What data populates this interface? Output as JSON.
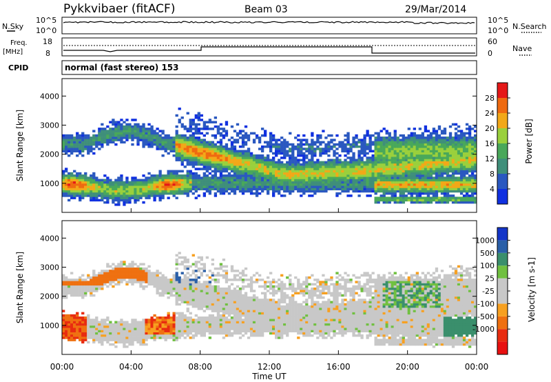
{
  "header": {
    "title": "Pykkvibaer (fitACF)",
    "beam": "Beam 03",
    "date": "29/Mar/2014"
  },
  "panels": {
    "nsky": {
      "label": "N.Sky",
      "left_ticks": [
        "10^5",
        "10^0"
      ],
      "right_ticks": [
        "10^5",
        "10^0"
      ],
      "right_label": "N.Search"
    },
    "freq": {
      "label_line1": "Freq.",
      "label_line2": "[MHz]",
      "left_ticks": [
        "18",
        "8"
      ],
      "right_ticks": [
        "60",
        "0"
      ],
      "right_label": "Nave"
    },
    "cpid": {
      "label": "CPID",
      "text": "normal (fast stereo) 153"
    }
  },
  "colors": {
    "power_scale": [
      "#1030e0",
      "#2a58c0",
      "#3f8f7a",
      "#49a85a",
      "#9ad03c",
      "#f2a818",
      "#ef6a10",
      "#e51818"
    ],
    "velocity_scale": [
      "#1435c8",
      "#2a5fa8",
      "#3a8f6c",
      "#70c040",
      "#c8c8c8",
      "#c8c8c8",
      "#f7a020",
      "#ef7010",
      "#e82c10",
      "#e81010"
    ]
  },
  "chart_data": [
    {
      "type": "heatmap",
      "name": "power",
      "ylabel": "Slant Range [km]",
      "yticks": [
        "1000",
        "2000",
        "3000",
        "4000"
      ],
      "ylim": [
        0,
        4600
      ],
      "colorbar_label": "Power [dB]",
      "colorbar_ticks": [
        "4",
        "8",
        "12",
        "16",
        "20",
        "24",
        "28"
      ],
      "colorbar_range": [
        0,
        32
      ]
    },
    {
      "type": "heatmap",
      "name": "velocity",
      "ylabel": "Slant Range [km]",
      "yticks": [
        "1000",
        "2000",
        "3000",
        "4000"
      ],
      "ylim": [
        0,
        4600
      ],
      "colorbar_label": "Velocity [m s-1]",
      "colorbar_ticks": [
        "1000",
        "500",
        "100",
        "25",
        "-25",
        "-100",
        "-500",
        "-1000"
      ]
    }
  ],
  "xaxis": {
    "label": "Time UT",
    "ticks": [
      "00:00",
      "04:00",
      "08:00",
      "12:00",
      "16:00",
      "20:00",
      "00:00"
    ]
  }
}
